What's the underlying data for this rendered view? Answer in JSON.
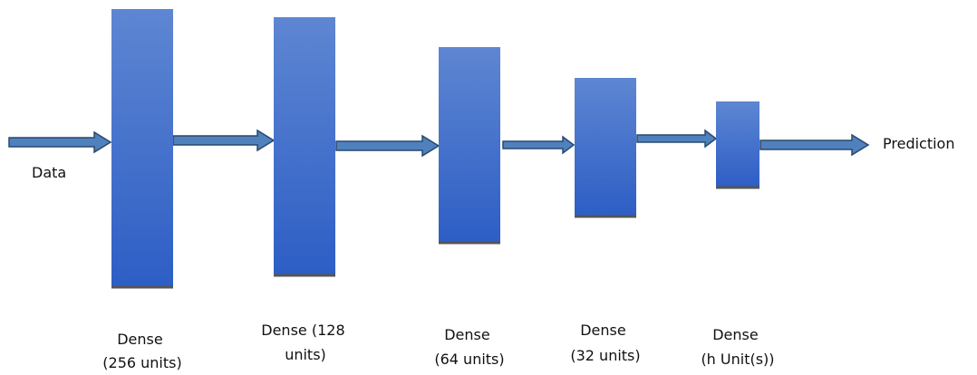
{
  "input_label": "Data",
  "output_label": "Prediction",
  "layers": [
    {
      "label_lines": [
        "Dense",
        "(256 units)"
      ]
    },
    {
      "label_lines": [
        "Dense (128",
        "units)"
      ]
    },
    {
      "label_lines": [
        "Dense",
        "(64 units)"
      ]
    },
    {
      "label_lines": [
        "Dense",
        "(32 units)"
      ]
    },
    {
      "label_lines": [
        "Dense",
        "(h Unit(s))"
      ]
    }
  ]
}
